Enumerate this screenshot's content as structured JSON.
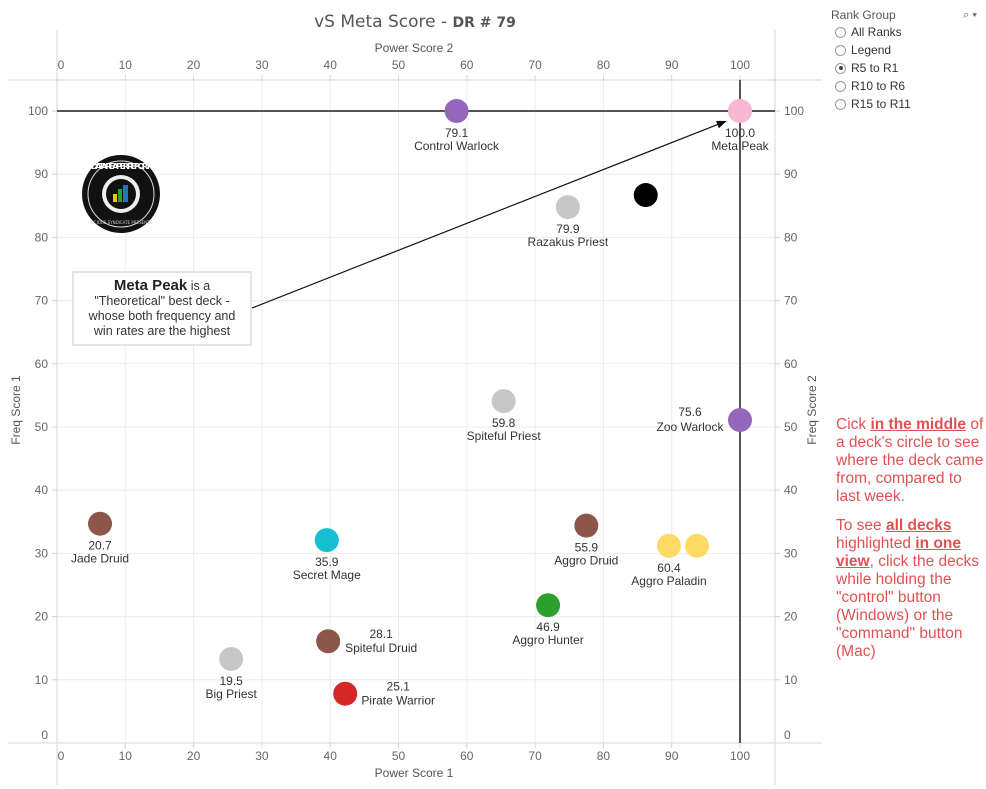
{
  "chart_data": {
    "type": "scatter",
    "title": "vS Meta Score",
    "subtitle": "DR # 79",
    "xlabel": "Power Score 1",
    "xlabel_top": "Power Score 2",
    "ylabel": "Freq Score 1",
    "ylabel_right": "Freq Score 2",
    "xlim": [
      0,
      105
    ],
    "ylim": [
      0,
      105
    ],
    "xticks": [
      0,
      10,
      20,
      30,
      40,
      50,
      60,
      70,
      80,
      90,
      100
    ],
    "yticks": [
      0,
      10,
      20,
      30,
      40,
      50,
      60,
      70,
      80,
      90,
      100
    ],
    "grid": true,
    "reference_lines": {
      "x": 100,
      "y": 100
    },
    "points": [
      {
        "name": "Control Warlock",
        "score": "79.1",
        "x": 58.5,
        "y": 100,
        "color": "#9467bd",
        "label_pos": "below"
      },
      {
        "name": "Meta Peak",
        "score": "100.0",
        "x": 100,
        "y": 100,
        "color": "#f7b6d2",
        "label_pos": "below"
      },
      {
        "name": "",
        "score": "",
        "x": 86.2,
        "y": 86.7,
        "color": "#000000",
        "label_pos": "none"
      },
      {
        "name": "Razakus Priest",
        "score": "79.9",
        "x": 74.8,
        "y": 84.8,
        "color": "#c7c7c7",
        "label_pos": "below"
      },
      {
        "name": "Spiteful Priest",
        "score": "59.8",
        "x": 65.4,
        "y": 54.1,
        "color": "#c7c7c7",
        "label_pos": "below"
      },
      {
        "name": "Zoo Warlock",
        "score": "75.6",
        "x": 100,
        "y": 51.1,
        "color": "#9467bd",
        "label_pos": "left"
      },
      {
        "name": "Jade Druid",
        "score": "20.7",
        "x": 6.3,
        "y": 34.7,
        "color": "#8c564b",
        "label_pos": "below"
      },
      {
        "name": "Secret Mage",
        "score": "35.9",
        "x": 39.5,
        "y": 32.1,
        "color": "#17becf",
        "label_pos": "below"
      },
      {
        "name": "Aggro Druid",
        "score": "55.9",
        "x": 77.5,
        "y": 34.4,
        "color": "#8c564b",
        "label_pos": "below"
      },
      {
        "name": "Aggro Paladin",
        "score": "60.4",
        "x": 89.6,
        "y": 31.2,
        "color": "#ffd966",
        "label_pos": "below"
      },
      {
        "name": "",
        "score": "",
        "x": 93.7,
        "y": 31.2,
        "color": "#ffd966",
        "label_pos": "none"
      },
      {
        "name": "Aggro Hunter",
        "score": "46.9",
        "x": 71.9,
        "y": 21.8,
        "color": "#2ca02c",
        "label_pos": "below"
      },
      {
        "name": "Spiteful Druid",
        "score": "28.1",
        "x": 39.7,
        "y": 16.1,
        "color": "#8c564b",
        "label_pos": "right"
      },
      {
        "name": "Big Priest",
        "score": "19.5",
        "x": 25.5,
        "y": 13.3,
        "color": "#c7c7c7",
        "label_pos": "below"
      },
      {
        "name": "Pirate Warrior",
        "score": "25.1",
        "x": 42.2,
        "y": 7.8,
        "color": "#d62728",
        "label_pos": "right"
      }
    ],
    "annotation": {
      "bold": "Meta Peak",
      "line1_rest": " is a",
      "line2": "\"Theoretical\" best deck -",
      "line3": "whose both frequency and",
      "line4": "win rates are the highest",
      "arrow_target": {
        "x": 98.5,
        "y": 99
      }
    }
  },
  "logo": {
    "text": "DATA REAPER REPORT",
    "subtext": "VICIOUS SYNDICATE PRESENTS"
  },
  "filter": {
    "title": "Rank Group",
    "options": [
      {
        "label": "All Ranks",
        "selected": false
      },
      {
        "label": "Legend",
        "selected": false
      },
      {
        "label": "R5 to R1",
        "selected": true
      },
      {
        "label": "R10 to R6",
        "selected": false
      },
      {
        "label": "R15 to R11",
        "selected": false
      }
    ]
  },
  "help": {
    "p1_a": "Cick ",
    "p1_b": "in the middle",
    "p1_c": " of a deck's circle to see where the deck came from, compared to last week.",
    "p2_a": "To see ",
    "p2_b": "all decks ",
    "p2_c": " highlighted ",
    "p2_d": "in one view",
    "p2_e": ", click the decks while holding the \"control\" button (Windows) or the \"command\" button (Mac)"
  },
  "colors": {
    "help_text": "#e05252",
    "reference_line": "#555555"
  }
}
